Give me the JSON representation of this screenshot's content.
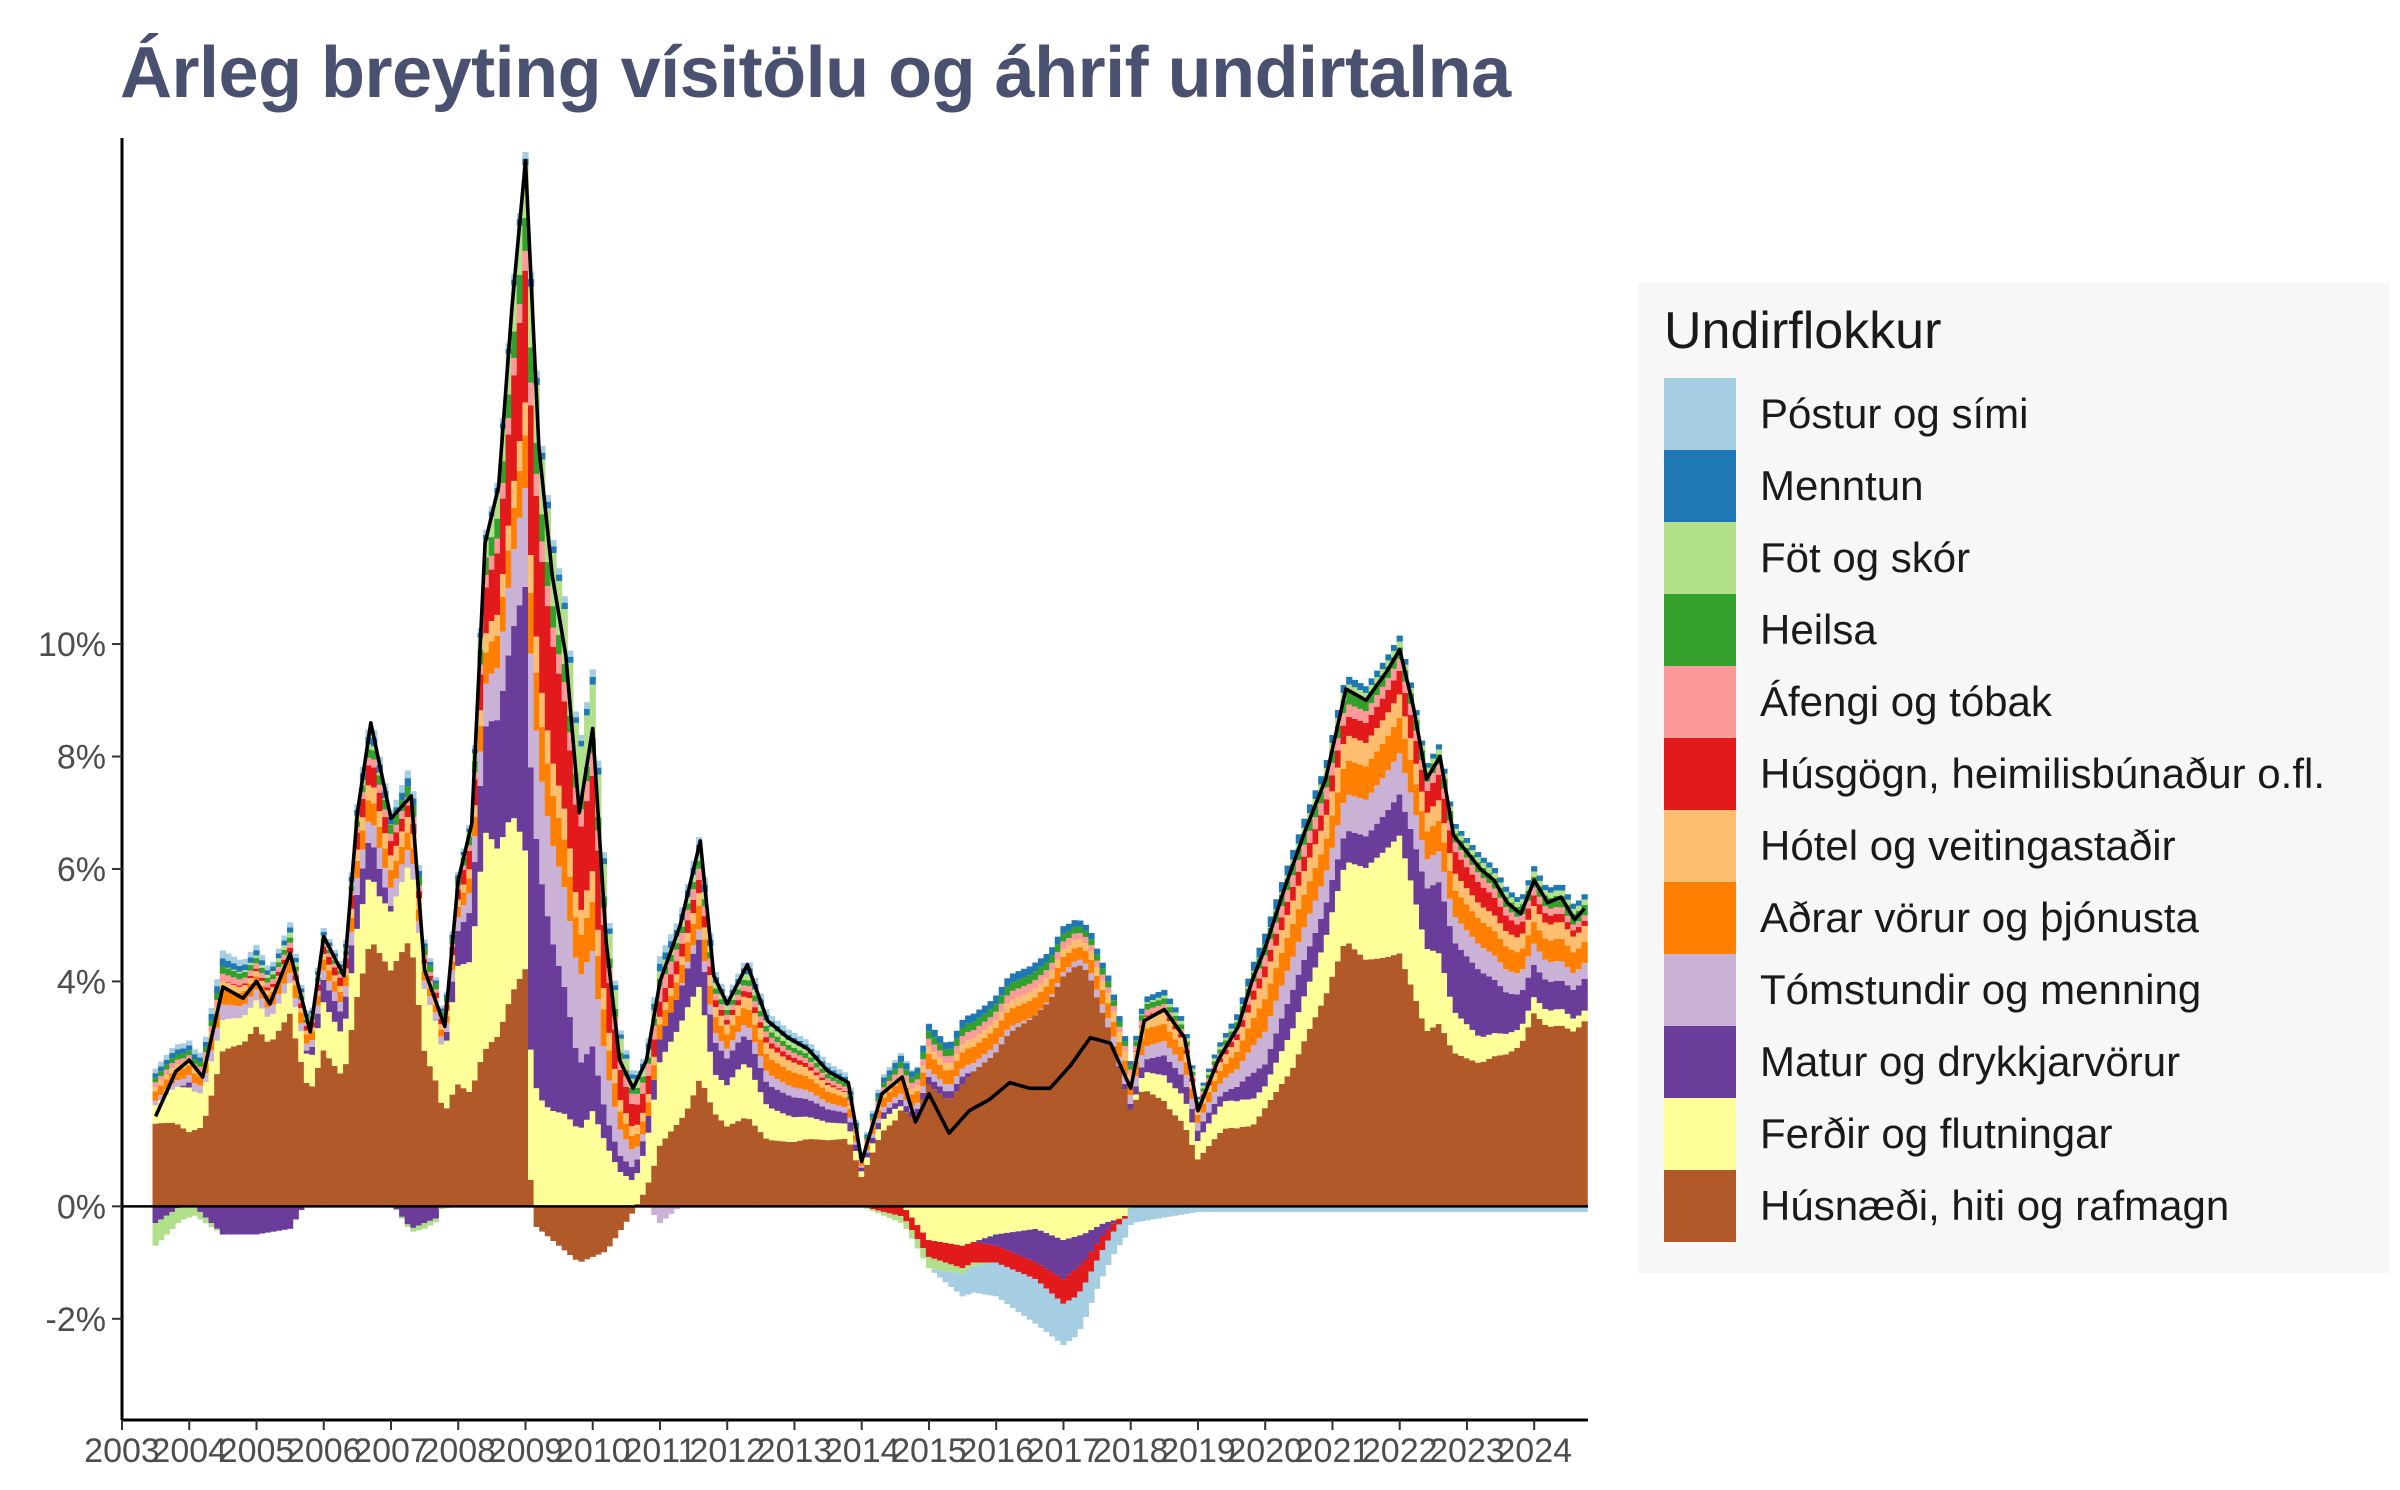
{
  "title": "Árleg breyting vísitölu og áhrif undirtalna",
  "chart_data": {
    "type": "area",
    "subtype": "stacked-bar-with-line",
    "title": "Árleg breyting vísitölu og áhrif undirtalna",
    "xlabel": "",
    "ylabel": "",
    "x_ticks": [
      "2003",
      "2004",
      "2005",
      "2006",
      "2007",
      "2008",
      "2009",
      "2010",
      "2011",
      "2012",
      "2013",
      "2014",
      "2015",
      "2016",
      "2017",
      "2018",
      "2019",
      "2020",
      "2021",
      "2022",
      "2023",
      "2024"
    ],
    "y_ticks": [
      "-2%",
      "0%",
      "4%",
      "6%",
      "8%",
      "10%"
    ],
    "y_tick_values": [
      -2,
      0,
      4,
      6,
      8,
      10
    ],
    "xlim": [
      2003,
      2024.8
    ],
    "ylim": [
      -3.8,
      19
    ],
    "grid": false,
    "legend_position": "right",
    "legend": {
      "title": "Undirflokkur",
      "entries": [
        {
          "name": "Póstur og sími",
          "color": "#a6cee3"
        },
        {
          "name": "Menntun",
          "color": "#1f78b4"
        },
        {
          "name": "Föt og skór",
          "color": "#b2df8a"
        },
        {
          "name": "Heilsa",
          "color": "#33a02c"
        },
        {
          "name": "Áfengi og tóbak",
          "color": "#fb9a99"
        },
        {
          "name": "Húsgögn, heimilisbúnaður o.fl.",
          "color": "#e31a1c"
        },
        {
          "name": "Hótel og veitingastaðir",
          "color": "#fdbf6f"
        },
        {
          "name": "Aðrar vörur og þjónusta",
          "color": "#ff7f00"
        },
        {
          "name": "Tómstundir og menning",
          "color": "#cab2d6"
        },
        {
          "name": "Matur og drykkjarvörur",
          "color": "#6a3d9a"
        },
        {
          "name": "Ferðir og flutningar",
          "color": "#ffff99"
        },
        {
          "name": "Húsnæði, hiti og rafmagn",
          "color": "#b15928"
        }
      ]
    },
    "line_series": {
      "name": "",
      "color": "#000000",
      "x": [
        2003.5,
        2003.8,
        2004.0,
        2004.2,
        2004.5,
        2004.8,
        2005.0,
        2005.2,
        2005.5,
        2005.8,
        2006.0,
        2006.3,
        2006.5,
        2006.7,
        2007.0,
        2007.3,
        2007.5,
        2007.8,
        2008.0,
        2008.2,
        2008.4,
        2008.6,
        2008.8,
        2009.0,
        2009.2,
        2009.4,
        2009.6,
        2009.8,
        2010.0,
        2010.2,
        2010.4,
        2010.6,
        2010.8,
        2011.0,
        2011.3,
        2011.6,
        2011.8,
        2012.0,
        2012.3,
        2012.6,
        2012.9,
        2013.2,
        2013.5,
        2013.8,
        2014.0,
        2014.3,
        2014.6,
        2014.8,
        2015.0,
        2015.3,
        2015.6,
        2015.9,
        2016.2,
        2016.5,
        2016.8,
        2017.1,
        2017.4,
        2017.7,
        2018.0,
        2018.2,
        2018.5,
        2018.8,
        2019.0,
        2019.3,
        2019.6,
        2019.8,
        2020.0,
        2020.3,
        2020.6,
        2020.9,
        2021.2,
        2021.5,
        2021.8,
        2022.0,
        2022.2,
        2022.4,
        2022.6,
        2022.8,
        2023.0,
        2023.2,
        2023.4,
        2023.6,
        2023.8,
        2024.0,
        2024.2,
        2024.4,
        2024.6,
        2024.75
      ],
      "y": [
        1.6,
        2.4,
        2.6,
        2.3,
        3.9,
        3.7,
        4.0,
        3.6,
        4.5,
        3.1,
        4.8,
        4.1,
        7.0,
        8.6,
        6.9,
        7.3,
        4.2,
        3.2,
        5.8,
        6.8,
        11.8,
        12.8,
        16.0,
        18.6,
        13.5,
        11.2,
        9.8,
        7.0,
        8.5,
        4.7,
        2.6,
        2.1,
        2.6,
        4.0,
        5.0,
        6.5,
        4.1,
        3.6,
        4.3,
        3.3,
        3.0,
        2.8,
        2.4,
        2.2,
        0.8,
        2.0,
        2.3,
        1.5,
        2.0,
        1.3,
        1.7,
        1.9,
        2.2,
        2.1,
        2.1,
        2.5,
        3.0,
        2.9,
        2.1,
        3.3,
        3.5,
        3.0,
        1.7,
        2.6,
        3.2,
        4.0,
        4.6,
        5.7,
        6.7,
        7.6,
        9.2,
        9.0,
        9.5,
        9.9,
        8.9,
        7.6,
        8.0,
        6.6,
        6.3,
        6.0,
        5.8,
        5.4,
        5.2,
        5.8,
        5.4,
        5.5,
        5.1,
        5.3
      ]
    },
    "stacked_series": [
      {
        "name": "Húsnæði, hiti og rafmagn",
        "color": "#b15928",
        "x": [
          2003.5,
          2004.0,
          2004.5,
          2005.0,
          2005.5,
          2006.0,
          2006.5,
          2006.8,
          2007.3,
          2007.7,
          2008.0,
          2008.4,
          2008.8,
          2009.0,
          2009.1,
          2009.3,
          2009.8,
          2010.2,
          2010.6,
          2011.0,
          2011.4,
          2011.8,
          2012.2,
          2012.6,
          2013.0,
          2013.5,
          2014.0,
          2014.5,
          2015.0,
          2015.5,
          2016.0,
          2016.6,
          2017.0,
          2017.3,
          2017.6,
          2017.9,
          2018.2,
          2018.6,
          2019.0,
          2019.4,
          2019.8,
          2020.0,
          2020.4,
          2020.8,
          2021.2,
          2021.6,
          2022.0,
          2022.4,
          2022.8,
          2023.2,
          2023.6,
          2024.0,
          2024.4,
          2024.75
        ],
        "y": [
          1.8,
          1.5,
          2.0,
          3.4,
          3.8,
          4.2,
          3.7,
          3.2,
          3.4,
          3.9,
          3.5,
          3.0,
          3.8,
          3.6,
          -0.3,
          -0.5,
          -1.0,
          -0.8,
          -0.1,
          0.8,
          1.5,
          1.7,
          1.6,
          1.2,
          1.3,
          1.5,
          1.6,
          1.5,
          1.6,
          1.5,
          1.9,
          2.2,
          3.0,
          4.0,
          3.2,
          2.4,
          2.0,
          1.8,
          1.8,
          1.7,
          0.9,
          0.9,
          1.4,
          2.3,
          3.4,
          3.8,
          4.3,
          3.8,
          3.3,
          2.8,
          3.0,
          3.6,
          3.2,
          3.5
        ]
      },
      {
        "name": "Ferðir og flutningar",
        "color": "#ffff99",
        "x": [
          2003.5,
          2004.0,
          2004.5,
          2005.0,
          2005.5,
          2006.0,
          2006.5,
          2006.8,
          2007.3,
          2007.7,
          2008.0,
          2008.4,
          2008.8,
          2009.0,
          2009.3,
          2009.8,
          2010.2,
          2010.6,
          2011.0,
          2011.4,
          2011.8,
          2012.2,
          2012.6,
          2013.0,
          2013.5,
          2014.0,
          2014.5,
          2015.0,
          2015.5,
          2016.0,
          2016.6,
          2017.0,
          2017.3,
          2017.6,
          2017.9,
          2018.2,
          2018.6,
          2019.0,
          2019.4,
          2019.8,
          2020.0,
          2020.4,
          2020.8,
          2021.2,
          2021.6,
          2022.0,
          2022.4,
          2022.8,
          2023.2,
          2023.6,
          2024.0,
          2024.4,
          2024.75
        ],
        "y": [
          0.4,
          0.9,
          0.4,
          0.5,
          0.6,
          1.3,
          1.2,
          0.7,
          1.0,
          1.9,
          3.4,
          4.2,
          3.2,
          1.8,
          1.5,
          1.4,
          1.1,
          0.6,
          1.1,
          1.6,
          0.7,
          1.0,
          0.6,
          0.5,
          0.4,
          0.3,
          0.2,
          -0.6,
          -0.7,
          -0.5,
          -0.4,
          -0.6,
          -0.5,
          -0.3,
          -0.2,
          0.3,
          0.5,
          0.7,
          0.6,
          0.3,
          0.2,
          0.4,
          0.6,
          1.0,
          1.5,
          2.0,
          1.8,
          0.9,
          0.5,
          0.4,
          0.3,
          0.3,
          0.2
        ]
      },
      {
        "name": "Matur og drykkjarvörur",
        "color": "#6a3d9a",
        "x": [
          2003.5,
          2004.0,
          2004.5,
          2005.0,
          2005.5,
          2006.0,
          2006.5,
          2006.8,
          2007.3,
          2007.7,
          2008.0,
          2008.4,
          2008.8,
          2009.0,
          2009.3,
          2009.8,
          2010.2,
          2010.6,
          2011.0,
          2011.4,
          2011.8,
          2012.2,
          2012.6,
          2013.0,
          2013.5,
          2014.0,
          2014.5,
          2015.0,
          2015.5,
          2016.0,
          2016.6,
          2017.0,
          2017.3,
          2017.6,
          2017.9,
          2018.2,
          2018.6,
          2019.0,
          2019.4,
          2019.8,
          2020.0,
          2020.4,
          2020.8,
          2021.2,
          2021.6,
          2022.0,
          2022.4,
          2022.8,
          2023.2,
          2023.6,
          2024.0,
          2024.4,
          2024.75
        ],
        "y": [
          -0.3,
          0.1,
          -0.5,
          -0.5,
          -0.4,
          0.6,
          0.6,
          0.4,
          -0.4,
          -0.2,
          1.0,
          2.0,
          3.2,
          4.0,
          3.0,
          1.2,
          0.5,
          0.3,
          0.3,
          0.6,
          0.6,
          0.5,
          0.4,
          0.4,
          0.3,
          0.2,
          0.1,
          0.1,
          0.1,
          -0.2,
          -0.6,
          -0.7,
          -0.5,
          -0.2,
          0.1,
          0.2,
          0.4,
          0.4,
          0.2,
          0.3,
          0.2,
          0.4,
          0.4,
          0.4,
          0.5,
          0.7,
          1.3,
          1.5,
          1.3,
          0.8,
          0.6,
          0.5,
          0.6
        ]
      },
      {
        "name": "Tómstundir og menning",
        "color": "#cab2d6",
        "x": [
          2003.5,
          2004.5,
          2005.5,
          2006.5,
          2007.5,
          2008.0,
          2008.4,
          2008.8,
          2009.0,
          2009.3,
          2009.8,
          2010.2,
          2010.6,
          2011.0,
          2011.4,
          2012.0,
          2013.0,
          2014.0,
          2015.0,
          2016.0,
          2016.6,
          2017.3,
          2018.0,
          2019.0,
          2020.0,
          2021.0,
          2022.0,
          2022.6,
          2023.2,
          2024.0,
          2024.75
        ],
        "y": [
          0.1,
          0.2,
          0.2,
          0.3,
          0.2,
          0.4,
          0.8,
          1.3,
          1.5,
          1.5,
          1.6,
          0.9,
          0.4,
          -0.3,
          0.1,
          0.2,
          0.2,
          0.1,
          0.1,
          0.1,
          0.0,
          0.1,
          0.2,
          0.3,
          0.3,
          0.4,
          0.7,
          0.6,
          0.5,
          0.4,
          0.3
        ]
      },
      {
        "name": "Aðrar vörur og þjónusta",
        "color": "#ff7f00",
        "x": [
          2003.5,
          2004.5,
          2005.5,
          2006.5,
          2007.5,
          2008.0,
          2008.4,
          2008.8,
          2009.0,
          2009.3,
          2009.8,
          2010.2,
          2010.6,
          2011.0,
          2011.4,
          2012.0,
          2013.0,
          2014.0,
          2015.0,
          2016.0,
          2016.6,
          2017.3,
          2018.0,
          2019.0,
          2020.0,
          2021.0,
          2022.0,
          2022.6,
          2023.2,
          2024.0,
          2024.75
        ],
        "y": [
          0.2,
          0.2,
          0.3,
          0.3,
          0.2,
          0.3,
          0.6,
          0.7,
          0.8,
          0.8,
          0.7,
          0.6,
          0.3,
          0.2,
          0.3,
          0.3,
          0.3,
          0.2,
          0.2,
          0.2,
          0.2,
          0.2,
          0.3,
          0.3,
          0.3,
          0.4,
          0.6,
          0.6,
          0.5,
          0.4,
          0.4
        ]
      },
      {
        "name": "Hótel og veitingastaðir",
        "color": "#fdbf6f",
        "x": [
          2003.5,
          2004.5,
          2005.5,
          2006.5,
          2007.5,
          2008.0,
          2008.5,
          2009.0,
          2009.5,
          2010.0,
          2011.0,
          2012.0,
          2013.0,
          2014.0,
          2015.0,
          2016.0,
          2017.0,
          2018.0,
          2019.0,
          2020.0,
          2021.0,
          2022.0,
          2022.6,
          2023.2,
          2024.0,
          2024.75
        ],
        "y": [
          0.1,
          0.1,
          0.1,
          0.2,
          0.2,
          0.2,
          0.4,
          0.5,
          0.5,
          0.4,
          0.1,
          0.2,
          0.2,
          0.1,
          0.1,
          0.1,
          0.1,
          0.2,
          0.2,
          0.2,
          0.3,
          0.4,
          0.4,
          0.3,
          0.3,
          0.3
        ]
      },
      {
        "name": "Húsgögn, heimilisbúnaður o.fl.",
        "color": "#e31a1c",
        "x": [
          2003.5,
          2004.5,
          2005.5,
          2006.5,
          2007.5,
          2008.0,
          2008.5,
          2008.8,
          2009.0,
          2009.3,
          2009.8,
          2010.2,
          2010.6,
          2011.0,
          2011.4,
          2012.0,
          2013.0,
          2014.0,
          2015.0,
          2015.5,
          2016.0,
          2016.6,
          2017.2,
          2017.5,
          2018.0,
          2019.0,
          2020.0,
          2021.0,
          2022.0,
          2022.6,
          2023.2,
          2024.0,
          2024.75
        ],
        "y": [
          0.0,
          0.0,
          0.1,
          0.3,
          0.1,
          0.3,
          1.0,
          1.8,
          2.0,
          1.9,
          1.5,
          1.0,
          0.5,
          0.2,
          0.2,
          0.1,
          0.1,
          0.0,
          -0.3,
          -0.4,
          -0.3,
          -0.3,
          -0.5,
          -0.3,
          0.0,
          0.1,
          0.1,
          0.2,
          0.4,
          0.5,
          0.4,
          0.2,
          0.1
        ]
      },
      {
        "name": "Áfengi og tóbak",
        "color": "#fb9a99",
        "x": [
          2003.5,
          2005.0,
          2006.5,
          2008.0,
          2008.6,
          2009.0,
          2009.5,
          2010.0,
          2011.0,
          2012.0,
          2014.0,
          2016.0,
          2018.0,
          2020.0,
          2022.0,
          2023.0,
          2024.75
        ],
        "y": [
          0.1,
          0.1,
          0.1,
          0.1,
          0.3,
          0.3,
          0.3,
          0.3,
          0.2,
          0.1,
          0.1,
          0.1,
          0.1,
          0.1,
          0.2,
          0.2,
          0.1
        ]
      },
      {
        "name": "Heilsa",
        "color": "#33a02c",
        "x": [
          2003.5,
          2005.0,
          2006.5,
          2008.0,
          2008.6,
          2009.0,
          2009.5,
          2010.0,
          2011.0,
          2012.0,
          2014.0,
          2016.0,
          2018.0,
          2020.0,
          2022.0,
          2023.0,
          2024.75
        ],
        "y": [
          0.1,
          0.1,
          0.1,
          0.2,
          0.4,
          0.5,
          0.3,
          0.2,
          0.1,
          0.1,
          0.1,
          0.1,
          0.1,
          0.1,
          0.2,
          0.2,
          0.2
        ]
      },
      {
        "name": "Föt og skór",
        "color": "#b2df8a",
        "x": [
          2003.5,
          2004.5,
          2005.5,
          2006.5,
          2007.5,
          2008.0,
          2008.5,
          2008.8,
          2009.0,
          2009.3,
          2009.8,
          2010.2,
          2010.6,
          2011.0,
          2012.0,
          2013.0,
          2014.0,
          2015.0,
          2016.0,
          2017.0,
          2018.0,
          2019.0,
          2020.0,
          2021.0,
          2022.0,
          2023.0,
          2024.75
        ],
        "y": [
          -0.4,
          0.0,
          0.1,
          0.1,
          -0.1,
          0.0,
          0.4,
          0.8,
          0.8,
          0.8,
          0.9,
          0.5,
          0.2,
          0.1,
          0.1,
          0.1,
          0.0,
          -0.2,
          0.0,
          0.0,
          0.0,
          0.1,
          0.0,
          0.1,
          0.1,
          0.1,
          0.1
        ]
      },
      {
        "name": "Menntun",
        "color": "#1f78b4",
        "x": [
          2003.5,
          2006.0,
          2009.0,
          2012.0,
          2015.0,
          2018.0,
          2021.0,
          2024.75
        ],
        "y": [
          0.1,
          0.1,
          0.1,
          0.1,
          0.1,
          0.1,
          0.1,
          0.1
        ]
      },
      {
        "name": "Póstur og sími",
        "color": "#a6cee3",
        "x": [
          2003.5,
          2005.0,
          2006.5,
          2008.0,
          2009.0,
          2010.0,
          2011.0,
          2012.0,
          2013.0,
          2014.0,
          2015.0,
          2015.5,
          2016.0,
          2016.6,
          2017.2,
          2017.5,
          2018.0,
          2018.5,
          2019.0,
          2020.0,
          2021.0,
          2022.0,
          2023.0,
          2024.0,
          2024.75
        ],
        "y": [
          0.1,
          0.1,
          0.1,
          0.1,
          0.1,
          0.1,
          0.1,
          0.1,
          0.1,
          0.1,
          0.0,
          -0.4,
          -0.6,
          -0.8,
          -0.7,
          -0.5,
          -0.3,
          -0.2,
          -0.1,
          -0.1,
          -0.1,
          -0.1,
          -0.1,
          -0.1,
          -0.1
        ]
      }
    ]
  }
}
